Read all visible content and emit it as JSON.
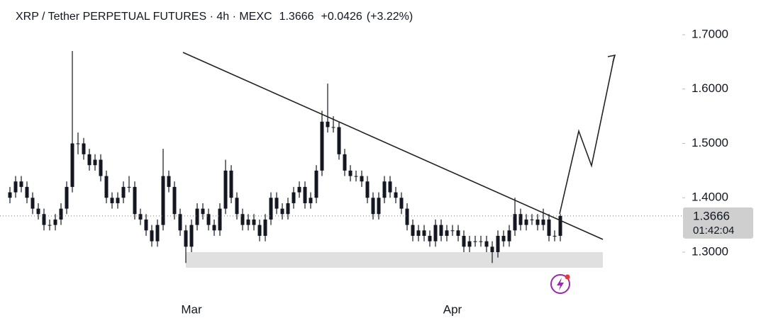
{
  "chart_data": {
    "type": "candlestick",
    "title": "XRP / Tether PERPETUAL FUTURES · 4h · MEXC",
    "last_price": 1.3666,
    "change": {
      "value": 0.0426,
      "label": "+0.0426"
    },
    "change_pct": {
      "value": 3.22,
      "label": "(+3.22%)"
    },
    "countdown": "01:42:04",
    "color": "#131722",
    "categories": [
      null,
      null,
      null,
      null,
      null,
      null,
      null,
      null,
      null,
      null,
      null,
      null,
      null,
      null,
      null,
      null,
      null,
      null,
      null,
      null,
      null,
      null,
      null,
      null,
      null,
      null,
      null,
      null,
      null,
      null,
      null,
      null,
      "Mar",
      null,
      null,
      null,
      null,
      null,
      null,
      null,
      null,
      null,
      null,
      null,
      null,
      null,
      null,
      null,
      null,
      null,
      null,
      null,
      null,
      null,
      null,
      null,
      null,
      null,
      null,
      null,
      null,
      null,
      null,
      null,
      null,
      null,
      null,
      null,
      null,
      null,
      null,
      null,
      null,
      null,
      null,
      null,
      null,
      null,
      "Apr",
      null,
      null,
      null,
      null,
      null,
      null,
      null,
      null,
      null,
      null,
      null,
      null,
      null,
      null,
      null,
      null,
      null,
      null,
      null
    ],
    "open": [
      1.4,
      1.41,
      1.43,
      1.42,
      1.4,
      1.38,
      1.37,
      1.35,
      1.35,
      1.36,
      1.38,
      1.42,
      1.5,
      1.5,
      1.48,
      1.46,
      1.47,
      1.44,
      1.4,
      1.39,
      1.4,
      1.42,
      1.42,
      1.37,
      1.36,
      1.34,
      1.32,
      1.35,
      1.44,
      1.42,
      1.37,
      1.34,
      1.31,
      1.35,
      1.38,
      1.37,
      1.35,
      1.34,
      1.38,
      1.45,
      1.4,
      1.37,
      1.35,
      1.36,
      1.35,
      1.33,
      1.36,
      1.4,
      1.38,
      1.37,
      1.39,
      1.41,
      1.42,
      1.39,
      1.4,
      1.45,
      1.54,
      1.53,
      1.53,
      1.48,
      1.45,
      1.44,
      1.44,
      1.43,
      1.4,
      1.37,
      1.4,
      1.43,
      1.41,
      1.4,
      1.38,
      1.35,
      1.33,
      1.34,
      1.33,
      1.32,
      1.35,
      1.33,
      1.34,
      1.34,
      1.33,
      1.31,
      1.32,
      1.32,
      1.32,
      1.31,
      1.3,
      1.33,
      1.32,
      1.34,
      1.37,
      1.35,
      1.36,
      1.36,
      1.35,
      1.36,
      1.33,
      1.33
    ],
    "high": [
      1.42,
      1.44,
      1.44,
      1.43,
      1.41,
      1.39,
      1.38,
      1.36,
      1.37,
      1.39,
      1.43,
      1.67,
      1.52,
      1.51,
      1.49,
      1.48,
      1.48,
      1.45,
      1.41,
      1.41,
      1.43,
      1.44,
      1.43,
      1.38,
      1.37,
      1.35,
      1.36,
      1.49,
      1.45,
      1.43,
      1.38,
      1.35,
      1.36,
      1.39,
      1.39,
      1.38,
      1.36,
      1.39,
      1.47,
      1.46,
      1.41,
      1.38,
      1.37,
      1.37,
      1.36,
      1.37,
      1.41,
      1.41,
      1.39,
      1.4,
      1.42,
      1.43,
      1.43,
      1.41,
      1.46,
      1.56,
      1.61,
      1.55,
      1.54,
      1.49,
      1.46,
      1.45,
      1.45,
      1.44,
      1.41,
      1.41,
      1.44,
      1.44,
      1.42,
      1.41,
      1.39,
      1.36,
      1.35,
      1.35,
      1.34,
      1.36,
      1.36,
      1.35,
      1.35,
      1.35,
      1.34,
      1.33,
      1.33,
      1.33,
      1.33,
      1.32,
      1.34,
      1.34,
      1.35,
      1.4,
      1.38,
      1.37,
      1.37,
      1.37,
      1.38,
      1.37,
      1.34,
      1.37
    ],
    "low": [
      1.39,
      1.4,
      1.41,
      1.39,
      1.37,
      1.36,
      1.34,
      1.34,
      1.34,
      1.35,
      1.37,
      1.41,
      1.48,
      1.47,
      1.45,
      1.45,
      1.43,
      1.39,
      1.38,
      1.38,
      1.39,
      1.41,
      1.36,
      1.35,
      1.33,
      1.31,
      1.31,
      1.34,
      1.41,
      1.36,
      1.33,
      1.28,
      1.3,
      1.34,
      1.36,
      1.34,
      1.33,
      1.33,
      1.37,
      1.39,
      1.36,
      1.34,
      1.34,
      1.34,
      1.32,
      1.32,
      1.35,
      1.37,
      1.36,
      1.36,
      1.38,
      1.4,
      1.38,
      1.38,
      1.39,
      1.44,
      1.52,
      1.52,
      1.47,
      1.44,
      1.43,
      1.43,
      1.42,
      1.39,
      1.36,
      1.36,
      1.39,
      1.4,
      1.39,
      1.37,
      1.34,
      1.32,
      1.32,
      1.32,
      1.31,
      1.31,
      1.32,
      1.32,
      1.33,
      1.32,
      1.3,
      1.3,
      1.31,
      1.31,
      1.3,
      1.28,
      1.29,
      1.31,
      1.31,
      1.33,
      1.34,
      1.34,
      1.35,
      1.34,
      1.34,
      1.32,
      1.32,
      1.32
    ],
    "close": [
      1.41,
      1.43,
      1.42,
      1.4,
      1.38,
      1.37,
      1.35,
      1.35,
      1.36,
      1.38,
      1.42,
      1.5,
      1.5,
      1.48,
      1.46,
      1.47,
      1.44,
      1.4,
      1.39,
      1.4,
      1.42,
      1.42,
      1.37,
      1.36,
      1.34,
      1.32,
      1.35,
      1.44,
      1.42,
      1.37,
      1.34,
      1.31,
      1.35,
      1.38,
      1.37,
      1.35,
      1.34,
      1.38,
      1.45,
      1.4,
      1.37,
      1.35,
      1.36,
      1.35,
      1.33,
      1.36,
      1.4,
      1.38,
      1.37,
      1.39,
      1.41,
      1.42,
      1.39,
      1.4,
      1.45,
      1.54,
      1.53,
      1.53,
      1.48,
      1.45,
      1.44,
      1.44,
      1.43,
      1.4,
      1.37,
      1.4,
      1.43,
      1.41,
      1.4,
      1.38,
      1.35,
      1.33,
      1.34,
      1.33,
      1.32,
      1.35,
      1.33,
      1.34,
      1.34,
      1.33,
      1.31,
      1.32,
      1.32,
      1.32,
      1.31,
      1.3,
      1.33,
      1.32,
      1.34,
      1.37,
      1.35,
      1.36,
      1.36,
      1.35,
      1.36,
      1.33,
      1.33,
      1.3666
    ],
    "support_zone": [
      1.2713,
      1.3
    ],
    "ylim": [
      1.2036,
      1.7638
    ],
    "yticks": [
      {
        "value": 1.3,
        "label": "1.3000"
      },
      {
        "value": 1.4,
        "label": "1.4000"
      },
      {
        "value": 1.5,
        "label": "1.5000"
      },
      {
        "value": 1.6,
        "label": "1.6000"
      },
      {
        "value": 1.7,
        "label": "1.7000"
      }
    ]
  }
}
